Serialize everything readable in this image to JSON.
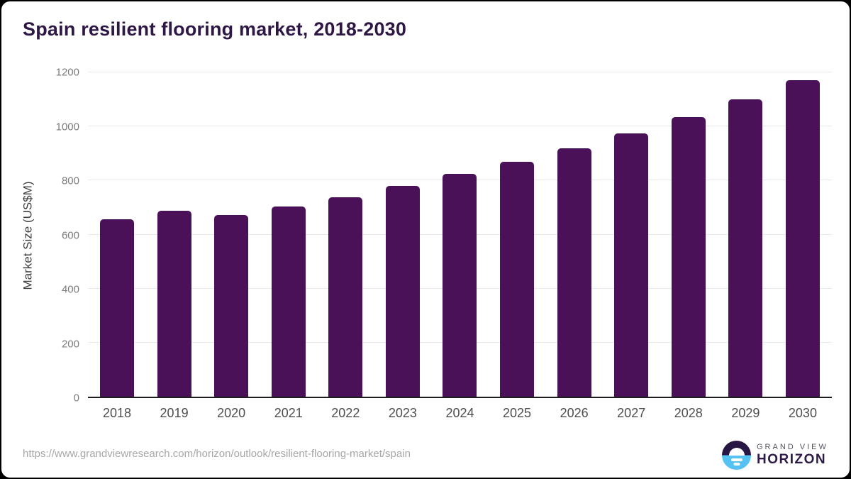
{
  "chart_data": {
    "type": "bar",
    "title": "Spain resilient flooring market, 2018-2030",
    "xlabel": "",
    "ylabel": "Market Size (US$M)",
    "categories": [
      "2018",
      "2019",
      "2020",
      "2021",
      "2022",
      "2023",
      "2024",
      "2025",
      "2026",
      "2027",
      "2028",
      "2029",
      "2030"
    ],
    "values": [
      657,
      689,
      671,
      703,
      739,
      779,
      824,
      870,
      920,
      973,
      1035,
      1100,
      1172
    ],
    "yticks": [
      0,
      200,
      400,
      600,
      800,
      1000,
      1200
    ],
    "ylim": [
      0,
      1200
    ],
    "grid": true,
    "legend": false,
    "bar_color": "#4A1159"
  },
  "colors": {
    "bar": "#4A1159",
    "title": "#2E1745",
    "logo_dark": "#281644",
    "logo_blue": "#56C2F3"
  },
  "footer": {
    "source_url": "https://www.grandviewresearch.com/horizon/outlook/resilient-flooring-market/spain",
    "logo": {
      "line1": "GRAND VIEW",
      "line2": "HORIZON"
    }
  }
}
